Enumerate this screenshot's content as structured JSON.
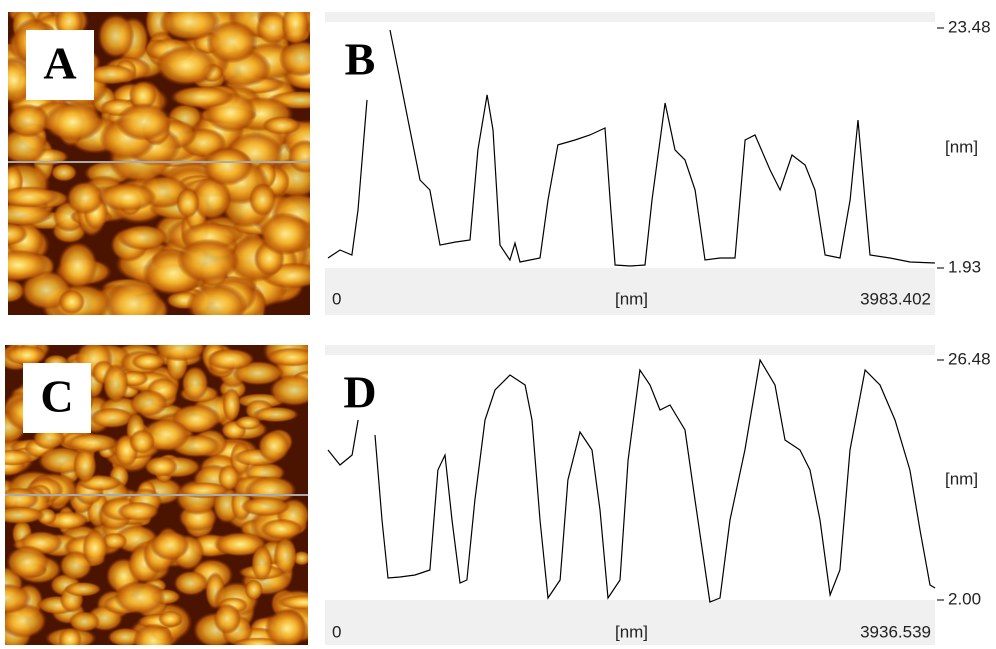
{
  "panels": [
    {
      "label": "A"
    },
    {
      "label": "C"
    }
  ],
  "chart_data": [
    {
      "type": "line",
      "title": "B",
      "color": "#000000",
      "xlabel": "[nm]",
      "ylabel": "[nm]",
      "xlim": [
        0,
        3983.402
      ],
      "ylim": [
        1.93,
        23.48
      ],
      "xticks": [
        0,
        3983.402
      ],
      "yticks": [
        1.93,
        23.48
      ],
      "x": [
        0,
        79,
        157,
        197,
        256,
        328,
        407,
        473,
        538,
        604,
        669,
        735,
        833,
        932,
        984,
        1044,
        1083,
        1129,
        1194,
        1227,
        1260,
        1391,
        1444,
        1509,
        1621,
        1719,
        1818,
        1851,
        1884,
        1982,
        2080,
        2126,
        2212,
        2277,
        2343,
        2409,
        2474,
        2573,
        2671,
        2737,
        2802,
        2901,
        2967,
        3045,
        3131,
        3196,
        3262,
        3360,
        3426,
        3478,
        3524,
        3557,
        3688,
        3820,
        3983
      ],
      "values": [
        2.83,
        3.55,
        3.1,
        7.14,
        17.02,
        null,
        23.3,
        18.81,
        14.32,
        9.83,
        8.93,
        3.99,
        4.26,
        4.44,
        12.53,
        17.47,
        14.32,
        3.99,
        2.65,
        4.17,
        2.47,
        2.83,
        8.04,
        12.98,
        13.42,
        13.87,
        14.5,
        8.04,
        2.2,
        2.11,
        2.2,
        8.04,
        16.75,
        12.53,
        11.63,
        8.93,
        2.65,
        2.83,
        2.83,
        13.42,
        13.87,
        10.73,
        8.93,
        12.08,
        11.18,
        8.93,
        3.1,
        2.83,
        8.04,
        15.22,
        8.04,
        3.1,
        2.83,
        2.47,
        2.38
      ]
    },
    {
      "type": "line",
      "title": "D",
      "color": "#000000",
      "xlabel": "[nm]",
      "ylabel": "[nm]",
      "xlim": [
        0,
        3936.539
      ],
      "ylim": [
        2.0,
        26.48
      ],
      "xticks": [
        0,
        3936.539
      ],
      "yticks": [
        {
          "value": 2.0,
          "label": "2.00"
        },
        26.48
      ],
      "x": [
        0,
        78,
        156,
        195,
        246,
        305,
        350,
        389,
        467,
        564,
        661,
        713,
        759,
        804,
        856,
        901,
        953,
        1018,
        1083,
        1180,
        1278,
        1323,
        1375,
        1427,
        1505,
        1556,
        1634,
        1712,
        1764,
        1816,
        1894,
        1946,
        2023,
        2088,
        2153,
        2218,
        2315,
        2380,
        2477,
        2542,
        2607,
        2704,
        2802,
        2899,
        2964,
        3061,
        3126,
        3191,
        3256,
        3320,
        3385,
        3483,
        3580,
        3677,
        3774,
        3839,
        3904,
        3937
      ],
      "values": [
        17.3,
        15.77,
        16.79,
        20.36,
        null,
        18.83,
        10.16,
        4.24,
        4.35,
        4.55,
        5.06,
        15.26,
        16.79,
        10.16,
        3.73,
        4.04,
        12.2,
        20.36,
        23.42,
        24.95,
        23.93,
        20.36,
        10.16,
        2.2,
        4.04,
        14.24,
        19.14,
        17.3,
        11.18,
        2.2,
        4.04,
        16.28,
        25.46,
        23.93,
        21.38,
        21.89,
        19.34,
        12.2,
        1.8,
        2.2,
        10.16,
        17.3,
        26.48,
        23.93,
        18.32,
        17.3,
        15.26,
        10.16,
        2.51,
        5.06,
        17.3,
        25.46,
        23.93,
        20.36,
        15.26,
        9.14,
        3.53,
        3.22
      ]
    }
  ]
}
